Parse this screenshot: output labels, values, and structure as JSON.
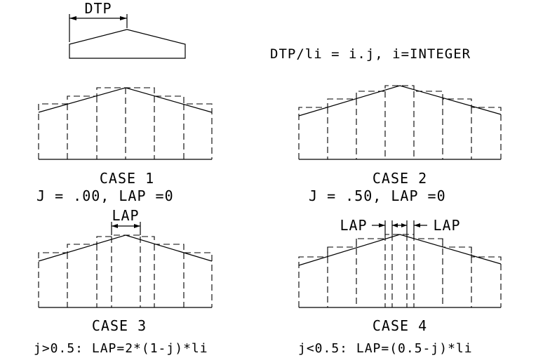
{
  "top": {
    "dtp_label": "DTP",
    "formula": "DTP/li = i.j,  i=INTEGER"
  },
  "cases": [
    {
      "title": "CASE 1",
      "condition": "J = .00, LAP =0"
    },
    {
      "title": "CASE 2",
      "condition": "J = .50, LAP =0"
    },
    {
      "title": "CASE 3",
      "condition": "j>0.5:  LAP=2*(1-j)*li",
      "lap_label": "LAP"
    },
    {
      "title": "CASE 4",
      "condition": "j<0.5:  LAP=(0.5-j)*li",
      "lap_label_left": "LAP",
      "lap_label_right": "LAP"
    }
  ],
  "style": {
    "line_color": "#000000",
    "background": "#ffffff"
  }
}
